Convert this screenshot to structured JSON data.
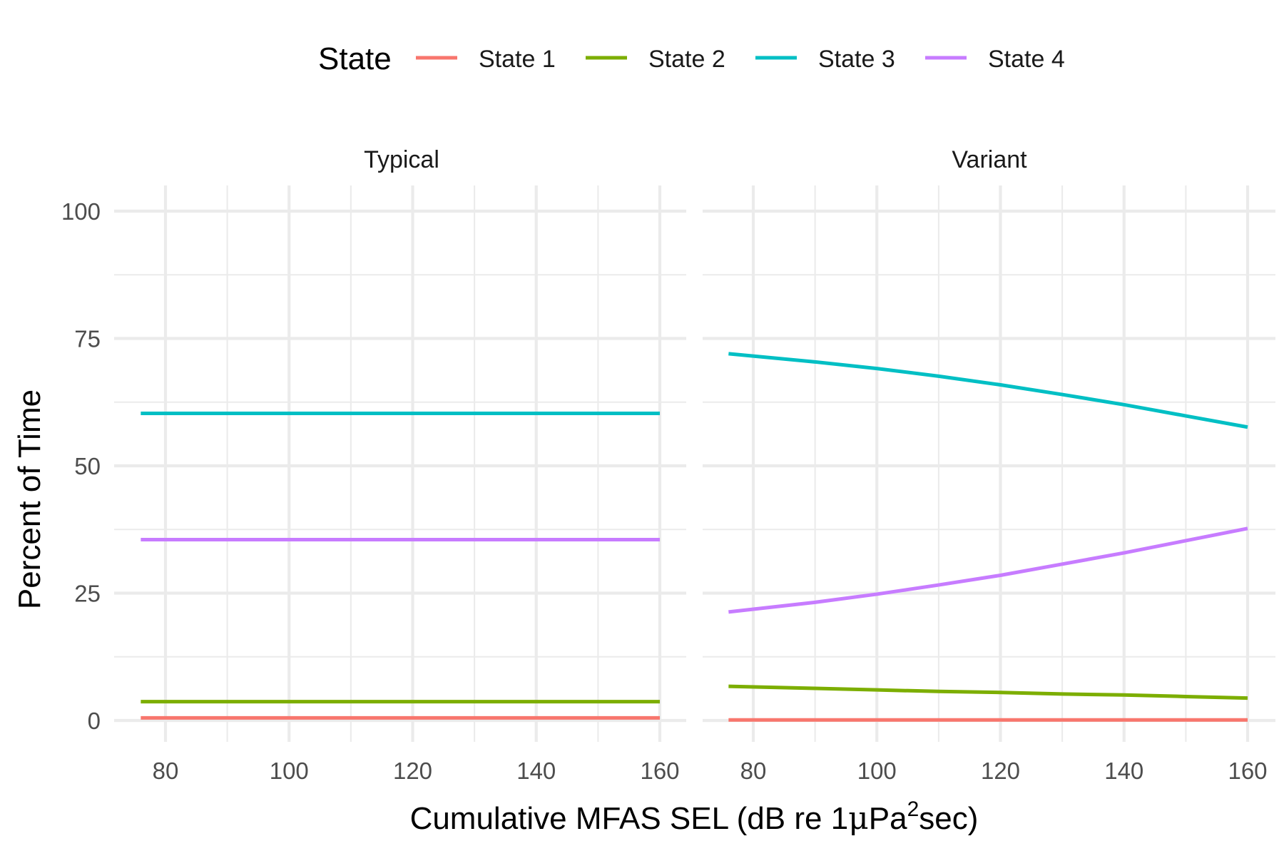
{
  "chart_data": {
    "type": "line",
    "legend": {
      "title": "State",
      "position": "top",
      "entries": [
        {
          "label": "State 1",
          "color": "#F8766D"
        },
        {
          "label": "State 2",
          "color": "#7CAE00"
        },
        {
          "label": "State 3",
          "color": "#00BFC4"
        },
        {
          "label": "State 4",
          "color": "#C77CFF"
        }
      ]
    },
    "xlabel_main": "Cumulative MFAS SEL (dB re 1",
    "xlabel_mu": "μ",
    "xlabel_pa": "Pa",
    "xlabel_sup": "2",
    "xlabel_tail": "sec)",
    "ylabel": "Percent of Time",
    "xlim": [
      76,
      160
    ],
    "ylim": [
      0,
      100
    ],
    "x_ticks": [
      80,
      100,
      120,
      140,
      160
    ],
    "y_ticks": [
      0,
      25,
      50,
      75,
      100
    ],
    "grid": true,
    "facets": [
      {
        "label": "Typical",
        "series": [
          {
            "name": "State 1",
            "x": [
              76,
              160
            ],
            "y": [
              0.5,
              0.5
            ]
          },
          {
            "name": "State 2",
            "x": [
              76,
              160
            ],
            "y": [
              3.7,
              3.7
            ]
          },
          {
            "name": "State 3",
            "x": [
              76,
              160
            ],
            "y": [
              60.3,
              60.3
            ]
          },
          {
            "name": "State 4",
            "x": [
              76,
              160
            ],
            "y": [
              35.5,
              35.5
            ]
          }
        ]
      },
      {
        "label": "Variant",
        "series": [
          {
            "name": "State 1",
            "x": [
              76,
              90,
              100,
              110,
              120,
              130,
              140,
              150,
              160
            ],
            "y": [
              0.1,
              0.1,
              0.1,
              0.1,
              0.1,
              0.1,
              0.1,
              0.1,
              0.1
            ]
          },
          {
            "name": "State 2",
            "x": [
              76,
              90,
              100,
              110,
              120,
              130,
              140,
              150,
              160
            ],
            "y": [
              6.7,
              6.3,
              6.0,
              5.7,
              5.5,
              5.2,
              5.0,
              4.7,
              4.4
            ]
          },
          {
            "name": "State 3",
            "x": [
              76,
              90,
              100,
              110,
              120,
              130,
              140,
              150,
              160
            ],
            "y": [
              72.0,
              70.4,
              69.1,
              67.6,
              65.9,
              64.0,
              62.0,
              59.8,
              57.6
            ]
          },
          {
            "name": "State 4",
            "x": [
              76,
              90,
              100,
              110,
              120,
              130,
              140,
              150,
              160
            ],
            "y": [
              21.3,
              23.2,
              24.8,
              26.6,
              28.5,
              30.7,
              32.9,
              35.3,
              37.7
            ]
          }
        ]
      }
    ]
  }
}
